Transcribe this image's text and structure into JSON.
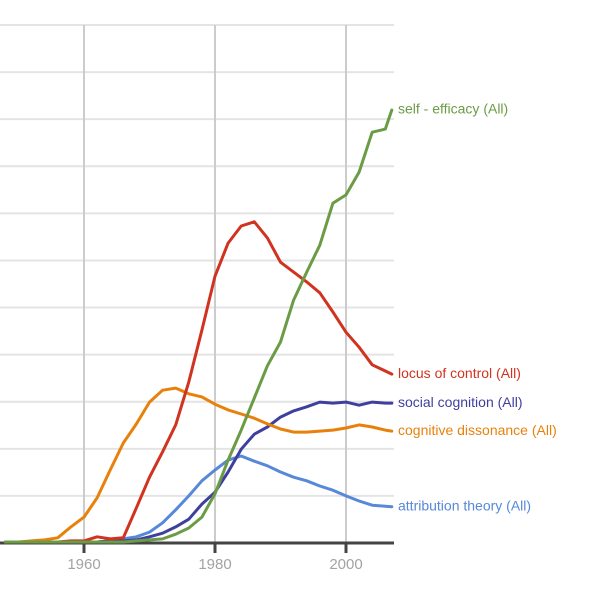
{
  "chart_data": {
    "type": "line",
    "x": [
      1948,
      1950,
      1952,
      1954,
      1956,
      1958,
      1960,
      1962,
      1964,
      1966,
      1968,
      1970,
      1972,
      1974,
      1976,
      1978,
      1980,
      1982,
      1984,
      1986,
      1988,
      1990,
      1992,
      1994,
      1996,
      1998,
      2000,
      2002,
      2004,
      2006,
      2007
    ],
    "series": [
      {
        "name": "self - efficacy (All)",
        "color": "#6b9c45",
        "values": [
          0.2,
          0.2,
          0.2,
          0.2,
          0.2,
          0.2,
          0.2,
          0.2,
          0.2,
          0.2,
          0.4,
          0.6,
          0.8,
          1.7,
          2.9,
          5.0,
          9.5,
          16.0,
          21.8,
          28.0,
          34.2,
          38.8,
          46.9,
          52.3,
          57.5,
          65.6,
          67.2,
          71.6,
          79.3,
          79.9,
          83.6
        ]
      },
      {
        "name": "locus of control (All)",
        "color": "#d0331f",
        "values": [
          0.2,
          0.2,
          0.2,
          0.2,
          0.2,
          0.4,
          0.4,
          1.2,
          0.8,
          1.0,
          6.8,
          12.7,
          17.6,
          22.8,
          31.1,
          41.1,
          51.5,
          57.9,
          61.2,
          62.0,
          58.9,
          54.2,
          52.3,
          50.4,
          48.3,
          44.6,
          40.7,
          37.8,
          34.4,
          33.2,
          32.6
        ]
      },
      {
        "name": "social cognition (All)",
        "color": "#3f3f9e",
        "values": [
          0.2,
          0.2,
          0.2,
          0.2,
          0.2,
          0.2,
          0.2,
          0.2,
          0.4,
          0.4,
          0.6,
          1.2,
          1.9,
          3.1,
          4.6,
          7.5,
          9.8,
          13.7,
          18.1,
          21.0,
          22.4,
          24.3,
          25.5,
          26.3,
          27.2,
          27.0,
          27.2,
          26.6,
          27.2,
          27.0,
          27.0
        ]
      },
      {
        "name": "cognitive dissonance (All)",
        "color": "#e8810c",
        "values": [
          0.2,
          0.2,
          0.4,
          0.6,
          1.0,
          3.1,
          5.0,
          8.7,
          14.1,
          19.3,
          23.0,
          27.2,
          29.5,
          29.9,
          28.8,
          28.2,
          26.8,
          25.7,
          24.9,
          24.1,
          23.0,
          22.0,
          21.4,
          21.4,
          21.6,
          21.8,
          22.2,
          22.8,
          22.4,
          21.8,
          21.6
        ]
      },
      {
        "name": "attribution theory (All)",
        "color": "#5788d9",
        "values": [
          0.2,
          0.2,
          0.2,
          0.2,
          0.2,
          0.2,
          0.2,
          0.2,
          0.4,
          0.8,
          1.2,
          2.1,
          3.9,
          6.4,
          9.1,
          12.0,
          14.1,
          16.0,
          16.8,
          15.8,
          14.9,
          13.7,
          12.7,
          12.0,
          11.0,
          10.2,
          9.1,
          8.1,
          7.3,
          7.1,
          7.0
        ]
      }
    ],
    "title": "",
    "xlabel": "",
    "ylabel": "",
    "x_tick_labels": [
      "1960",
      "1980",
      "2000"
    ],
    "x_ticks": [
      1960,
      1980,
      2000
    ],
    "xlim": [
      1947.2,
      2007.8
    ],
    "ylim": [
      0,
      100
    ],
    "y_axis_note": "no y-axis labels shown; values are relative frequency in % of plot height",
    "grid": true,
    "grid_h_divisions": 11,
    "legend_position": "right-end-labels"
  },
  "colors": {
    "background": "#ffffff",
    "grid_horizontal": "#e4e4e4",
    "grid_vertical": "#cccccc",
    "axis": "#444444",
    "tick_label": "#a3a3a3"
  }
}
